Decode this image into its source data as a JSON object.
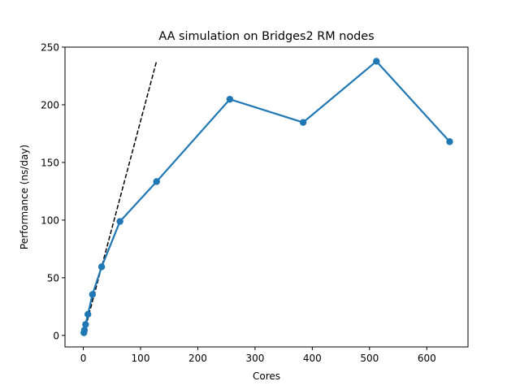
{
  "chart_data": {
    "type": "line",
    "title": "AA simulation on Bridges2 RM nodes",
    "xlabel": "Cores",
    "ylabel": "Performance (ns/day)",
    "xlim": [
      -32,
      672
    ],
    "ylim": [
      -10,
      250
    ],
    "xticks": [
      0,
      100,
      200,
      300,
      400,
      500,
      600
    ],
    "yticks": [
      0,
      50,
      100,
      150,
      200,
      250
    ],
    "grid": false,
    "series": [
      {
        "color": "#1f77b4",
        "style": "solid-with-circle-markers",
        "x": [
          1,
          2,
          4,
          8,
          16,
          32,
          64,
          128,
          256,
          384,
          512,
          640
        ],
        "y": [
          2.3,
          4.6,
          9.5,
          18.3,
          35.5,
          59.5,
          98.8,
          133.4,
          204.8,
          184.7,
          237.7,
          168.0
        ]
      },
      {
        "color": "#000000",
        "style": "dashed",
        "x": [
          1,
          128
        ],
        "y": [
          1.86,
          238
        ]
      }
    ]
  }
}
